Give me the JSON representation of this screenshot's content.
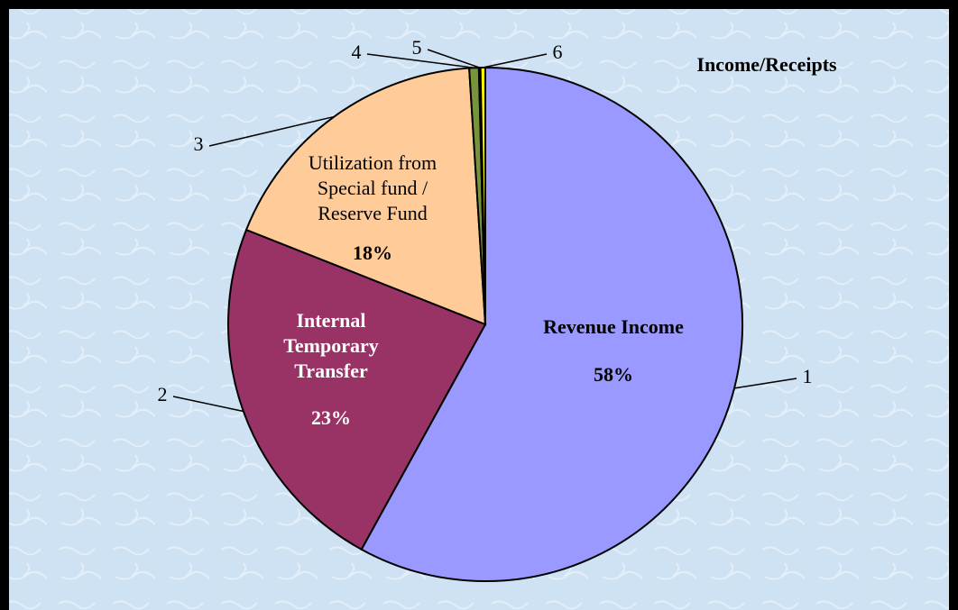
{
  "chart_data": {
    "type": "pie",
    "title": "Income/Receipts",
    "categories": [
      "Revenue Income",
      "Internal Temporary Transfer",
      "Utilization from Special fund / Reserve Fund",
      null,
      null,
      null
    ],
    "slice_numbers": [
      "1",
      "2",
      "3",
      "4",
      "5",
      "6"
    ],
    "values": [
      58,
      23,
      18,
      0.6,
      0.1,
      0.3
    ],
    "value_labels": [
      "58%",
      "23%",
      "18%",
      null,
      null,
      null
    ],
    "colors": [
      "#9999ff",
      "#993366",
      "#ffcc99",
      "#77933c",
      "#336699",
      "#ffff00"
    ]
  }
}
